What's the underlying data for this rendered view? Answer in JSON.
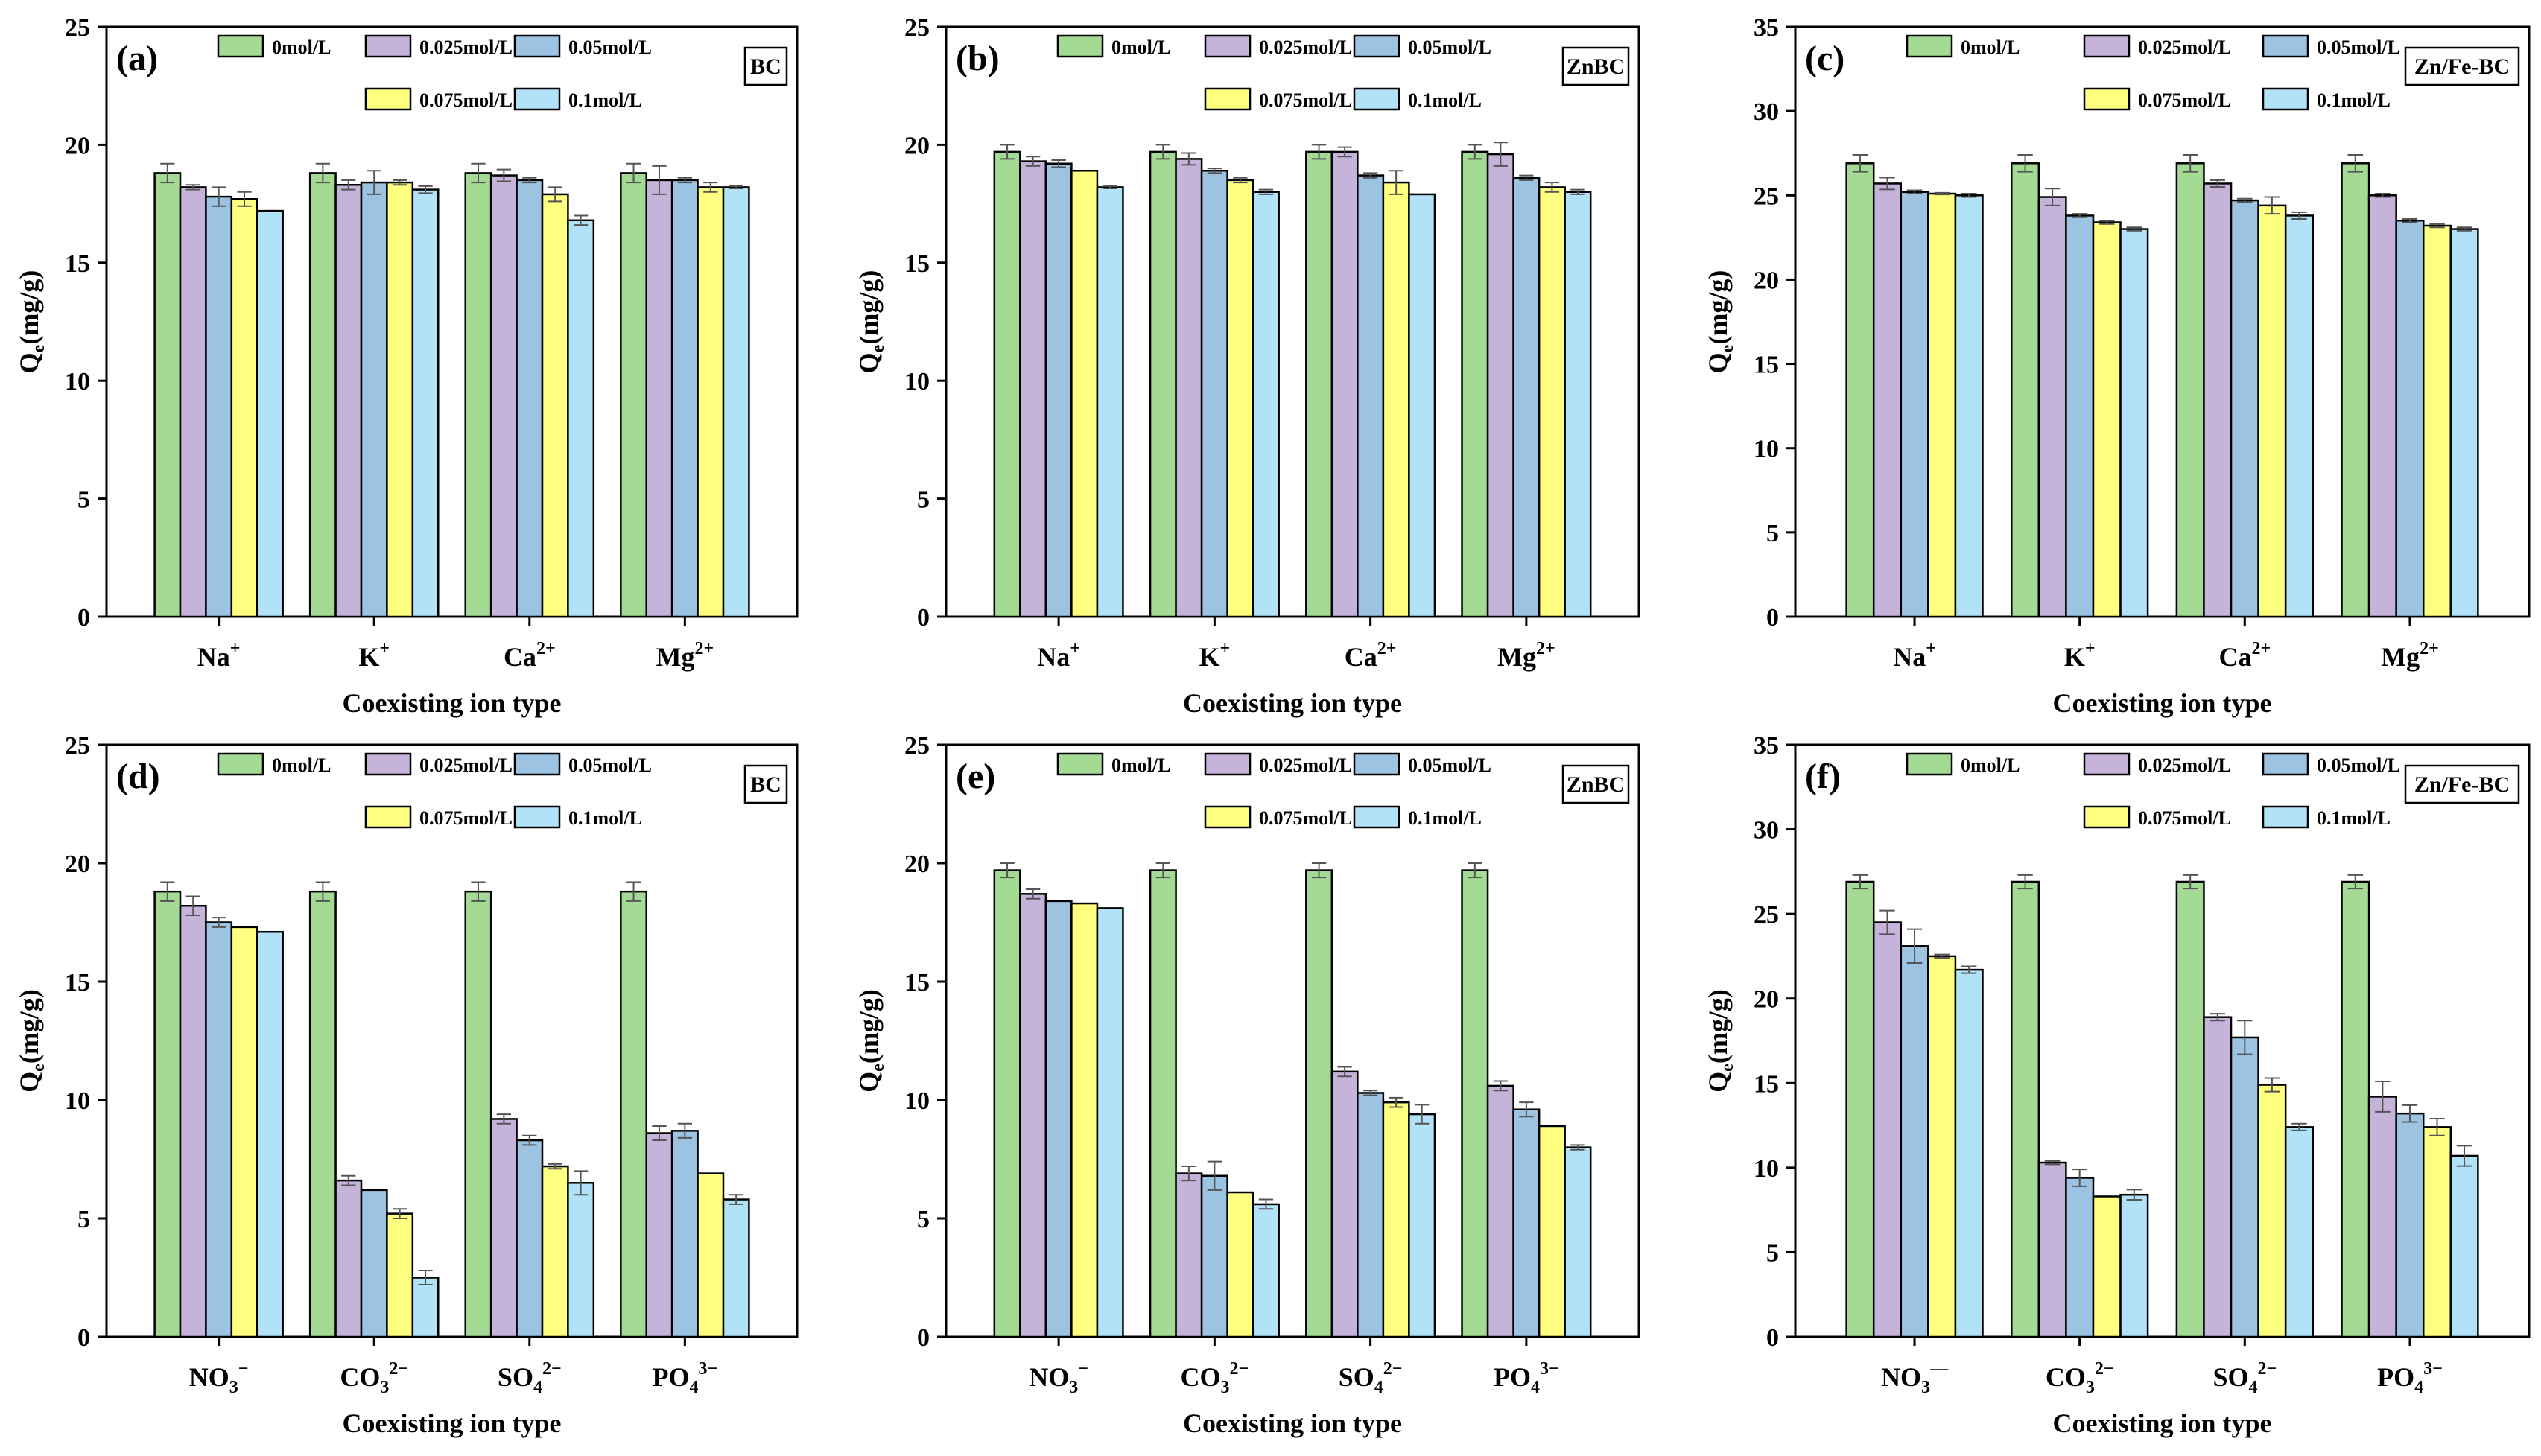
{
  "colors": {
    "series": [
      "#a4db94",
      "#c5b3da",
      "#9dc3e2",
      "#ffff80",
      "#b2e2f8"
    ],
    "frame": "#000000",
    "error_bar": "#555555"
  },
  "chart_data": [
    {
      "id": "a",
      "type": "bar",
      "panel_label": "(a)",
      "badge": "BC",
      "xlabel": "Coexisting ion type",
      "ylabel": "Qe(mg/g)",
      "ylim": [
        0,
        25
      ],
      "yticks": [
        0,
        5,
        10,
        15,
        20,
        25
      ],
      "categories": [
        {
          "base": "Na",
          "sub": "",
          "sup": "+"
        },
        {
          "base": "K",
          "sub": "",
          "sup": "+"
        },
        {
          "base": "Ca",
          "sub": "",
          "sup": "2+"
        },
        {
          "base": "Mg",
          "sub": "",
          "sup": "2+"
        }
      ],
      "series": [
        {
          "name": "0mol/L",
          "values": [
            18.8,
            18.8,
            18.8,
            18.8
          ],
          "errors": [
            0.4,
            0.4,
            0.4,
            0.4
          ]
        },
        {
          "name": "0.025mol/L",
          "values": [
            18.2,
            18.3,
            18.7,
            18.5
          ],
          "errors": [
            0.1,
            0.2,
            0.25,
            0.6
          ]
        },
        {
          "name": "0.05mol/L",
          "values": [
            17.8,
            18.4,
            18.5,
            18.5
          ],
          "errors": [
            0.4,
            0.5,
            0.1,
            0.1
          ]
        },
        {
          "name": "0.075mol/L",
          "values": [
            17.7,
            18.4,
            17.9,
            18.2
          ],
          "errors": [
            0.3,
            0.1,
            0.3,
            0.2
          ]
        },
        {
          "name": "0.1mol/L",
          "values": [
            17.2,
            18.1,
            16.8,
            18.2
          ],
          "errors": [
            0,
            0.15,
            0.2,
            0.05
          ]
        }
      ]
    },
    {
      "id": "b",
      "type": "bar",
      "panel_label": "(b)",
      "badge": "ZnBC",
      "xlabel": "Coexisting ion type",
      "ylabel": "Qe(mg/g)",
      "ylim": [
        0,
        25
      ],
      "yticks": [
        0,
        5,
        10,
        15,
        20,
        25
      ],
      "categories": [
        {
          "base": "Na",
          "sub": "",
          "sup": "+"
        },
        {
          "base": "K",
          "sub": "",
          "sup": "+"
        },
        {
          "base": "Ca",
          "sub": "",
          "sup": "2+"
        },
        {
          "base": "Mg",
          "sub": "",
          "sup": "2+"
        }
      ],
      "series": [
        {
          "name": "0mol/L",
          "values": [
            19.7,
            19.7,
            19.7,
            19.7
          ],
          "errors": [
            0.3,
            0.3,
            0.3,
            0.3
          ]
        },
        {
          "name": "0.025mol/L",
          "values": [
            19.3,
            19.4,
            19.7,
            19.6
          ],
          "errors": [
            0.2,
            0.25,
            0.2,
            0.5
          ]
        },
        {
          "name": "0.05mol/L",
          "values": [
            19.2,
            18.9,
            18.7,
            18.6
          ],
          "errors": [
            0.15,
            0.1,
            0.1,
            0.1
          ]
        },
        {
          "name": "0.075mol/L",
          "values": [
            18.9,
            18.5,
            18.4,
            18.2
          ],
          "errors": [
            0,
            0.1,
            0.5,
            0.2
          ]
        },
        {
          "name": "0.1mol/L",
          "values": [
            18.2,
            18.0,
            17.9,
            18.0
          ],
          "errors": [
            0.05,
            0.1,
            0,
            0.1
          ]
        }
      ]
    },
    {
      "id": "c",
      "type": "bar",
      "panel_label": "(c)",
      "badge": "Zn/Fe-BC",
      "xlabel": "Coexisting ion type",
      "ylabel": "Qe(mg/g)",
      "ylim": [
        0,
        35
      ],
      "yticks": [
        0,
        5,
        10,
        15,
        20,
        25,
        30,
        35
      ],
      "categories": [
        {
          "base": "Na",
          "sub": "",
          "sup": "+"
        },
        {
          "base": "K",
          "sub": "",
          "sup": "+"
        },
        {
          "base": "Ca",
          "sub": "",
          "sup": "2+"
        },
        {
          "base": "Mg",
          "sub": "",
          "sup": "2+"
        }
      ],
      "series": [
        {
          "name": "0mol/L",
          "values": [
            26.9,
            26.9,
            26.9,
            26.9
          ],
          "errors": [
            0.5,
            0.5,
            0.5,
            0.5
          ]
        },
        {
          "name": "0.025mol/L",
          "values": [
            25.7,
            24.9,
            25.7,
            25.0
          ],
          "errors": [
            0.35,
            0.5,
            0.2,
            0.1
          ]
        },
        {
          "name": "0.05mol/L",
          "values": [
            25.2,
            23.8,
            24.7,
            23.5
          ],
          "errors": [
            0.1,
            0.1,
            0.1,
            0.1
          ]
        },
        {
          "name": "0.075mol/L",
          "values": [
            25.1,
            23.4,
            24.4,
            23.2
          ],
          "errors": [
            0.05,
            0.1,
            0.5,
            0.1
          ]
        },
        {
          "name": "0.1mol/L",
          "values": [
            25.0,
            23.0,
            23.8,
            23.0
          ],
          "errors": [
            0.1,
            0.1,
            0.2,
            0.1
          ]
        }
      ]
    },
    {
      "id": "d",
      "type": "bar",
      "panel_label": "(d)",
      "badge": "BC",
      "xlabel": "Coexisting ion type",
      "ylabel": "Qe(mg/g)",
      "ylim": [
        0,
        25
      ],
      "yticks": [
        0,
        5,
        10,
        15,
        20,
        25
      ],
      "categories": [
        {
          "base": "NO",
          "sub": "3",
          "sup": "−"
        },
        {
          "base": "CO",
          "sub": "3",
          "sup": "2−"
        },
        {
          "base": "SO",
          "sub": "4",
          "sup": "2−"
        },
        {
          "base": "PO",
          "sub": "4",
          "sup": "3−"
        }
      ],
      "series": [
        {
          "name": "0mol/L",
          "values": [
            18.8,
            18.8,
            18.8,
            18.8
          ],
          "errors": [
            0.4,
            0.4,
            0.4,
            0.4
          ]
        },
        {
          "name": "0.025mol/L",
          "values": [
            18.2,
            6.6,
            9.2,
            8.6
          ],
          "errors": [
            0.4,
            0.2,
            0.2,
            0.3
          ]
        },
        {
          "name": "0.05mol/L",
          "values": [
            17.5,
            6.2,
            8.3,
            8.7
          ],
          "errors": [
            0.2,
            0,
            0.2,
            0.3
          ]
        },
        {
          "name": "0.075mol/L",
          "values": [
            17.3,
            5.2,
            7.2,
            6.9
          ],
          "errors": [
            0,
            0.2,
            0.1,
            0
          ]
        },
        {
          "name": "0.1mol/L",
          "values": [
            17.1,
            2.5,
            6.5,
            5.8
          ],
          "errors": [
            0,
            0.3,
            0.5,
            0.2
          ]
        }
      ]
    },
    {
      "id": "e",
      "type": "bar",
      "panel_label": "(e)",
      "badge": "ZnBC",
      "xlabel": "Coexisting ion type",
      "ylabel": "Qe(mg/g)",
      "ylim": [
        0,
        25
      ],
      "yticks": [
        0,
        5,
        10,
        15,
        20,
        25
      ],
      "categories": [
        {
          "base": "NO",
          "sub": "3",
          "sup": "−"
        },
        {
          "base": "CO",
          "sub": "3",
          "sup": "2−"
        },
        {
          "base": "SO",
          "sub": "4",
          "sup": "2−"
        },
        {
          "base": "PO",
          "sub": "4",
          "sup": "3−"
        }
      ],
      "series": [
        {
          "name": "0mol/L",
          "values": [
            19.7,
            19.7,
            19.7,
            19.7
          ],
          "errors": [
            0.3,
            0.3,
            0.3,
            0.3
          ]
        },
        {
          "name": "0.025mol/L",
          "values": [
            18.7,
            6.9,
            11.2,
            10.6
          ],
          "errors": [
            0.2,
            0.3,
            0.2,
            0.2
          ]
        },
        {
          "name": "0.05mol/L",
          "values": [
            18.4,
            6.8,
            10.3,
            9.6
          ],
          "errors": [
            0,
            0.6,
            0.1,
            0.3
          ]
        },
        {
          "name": "0.075mol/L",
          "values": [
            18.3,
            6.1,
            9.9,
            8.9
          ],
          "errors": [
            0,
            0,
            0.2,
            0
          ]
        },
        {
          "name": "0.1mol/L",
          "values": [
            18.1,
            5.6,
            9.4,
            8.0
          ],
          "errors": [
            0,
            0.2,
            0.4,
            0.1
          ]
        }
      ]
    },
    {
      "id": "f",
      "type": "bar",
      "panel_label": "(f)",
      "badge": "Zn/Fe-BC",
      "xlabel": "Coexisting ion type",
      "ylabel": "Qe(mg/g)",
      "ylim": [
        0,
        35
      ],
      "yticks": [
        0,
        5,
        10,
        15,
        20,
        25,
        30,
        35
      ],
      "categories": [
        {
          "base": "NO",
          "sub": "3",
          "sup": "—"
        },
        {
          "base": "CO",
          "sub": "3",
          "sup": "2−"
        },
        {
          "base": "SO",
          "sub": "4",
          "sup": "2−"
        },
        {
          "base": "PO",
          "sub": "4",
          "sup": "3−"
        }
      ],
      "series": [
        {
          "name": "0mol/L",
          "values": [
            26.9,
            26.9,
            26.9,
            26.9
          ],
          "errors": [
            0.4,
            0.4,
            0.4,
            0.4
          ]
        },
        {
          "name": "0.025mol/L",
          "values": [
            24.5,
            10.3,
            18.9,
            14.2
          ],
          "errors": [
            0.7,
            0.1,
            0.2,
            0.9
          ]
        },
        {
          "name": "0.05mol/L",
          "values": [
            23.1,
            9.4,
            17.7,
            13.2
          ],
          "errors": [
            1.0,
            0.5,
            1.0,
            0.5
          ]
        },
        {
          "name": "0.075mol/L",
          "values": [
            22.5,
            8.3,
            14.9,
            12.4
          ],
          "errors": [
            0.1,
            0,
            0.4,
            0.5
          ]
        },
        {
          "name": "0.1mol/L",
          "values": [
            21.7,
            8.4,
            12.4,
            10.7
          ],
          "errors": [
            0.2,
            0.3,
            0.2,
            0.6
          ]
        }
      ]
    }
  ]
}
